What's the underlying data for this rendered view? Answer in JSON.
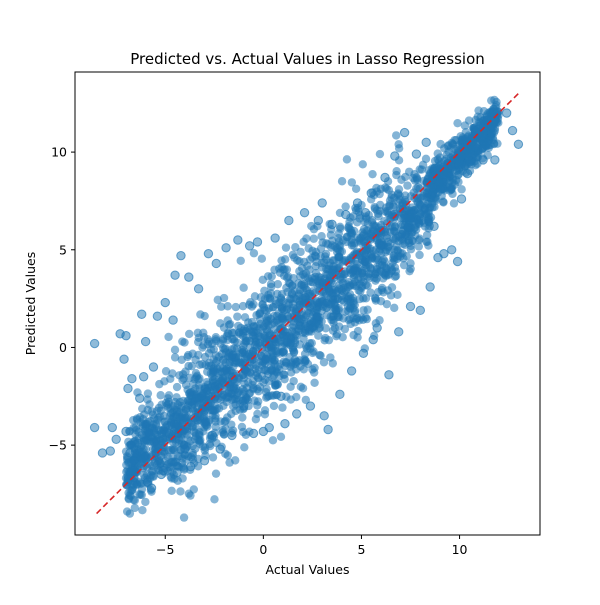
{
  "chart_data": {
    "type": "scatter",
    "title": "Predicted vs. Actual Values in Lasso Regression",
    "xlabel": "Actual Values",
    "ylabel": "Predicted Values",
    "xlim": [
      -9.6,
      14.1
    ],
    "ylim": [
      -9.6,
      14.1
    ],
    "x_ticks": [
      -5,
      0,
      5,
      10
    ],
    "y_ticks": [
      -5,
      0,
      5,
      10
    ],
    "grid": false,
    "legend": "none",
    "series": [
      {
        "marker": "circle",
        "color": "#1f77b4",
        "alpha": 0.5,
        "points": [
          [
            -8.6,
            0.2
          ],
          [
            -8.6,
            -4.1
          ],
          [
            -8.2,
            -5.4
          ],
          [
            -7.8,
            -5.3
          ],
          [
            -7.7,
            -4.1
          ],
          [
            -7.5,
            -4.7
          ],
          [
            -7.3,
            0.7
          ],
          [
            -7.0,
            0.6
          ],
          [
            -7.1,
            -0.6
          ],
          [
            -6.9,
            -2.1
          ],
          [
            -7.0,
            -4.3
          ],
          [
            -6.8,
            -5.4
          ],
          [
            -6.6,
            -5.8
          ],
          [
            -6.4,
            -4.9
          ],
          [
            -6.3,
            -2.6
          ],
          [
            -6.1,
            -1.5
          ],
          [
            -6.0,
            0.3
          ],
          [
            -5.9,
            -6.9
          ],
          [
            -5.7,
            -7.2
          ],
          [
            -5.6,
            -1.0
          ],
          [
            -5.4,
            1.6
          ],
          [
            -5.2,
            -6.5
          ],
          [
            -5.0,
            2.3
          ],
          [
            -4.8,
            -4.4
          ],
          [
            -4.6,
            1.4
          ],
          [
            -4.4,
            -6.4
          ],
          [
            -4.2,
            4.7
          ],
          [
            -4.0,
            -5.2
          ],
          [
            -3.8,
            3.6
          ],
          [
            -3.5,
            -3.6
          ],
          [
            -3.3,
            3.0
          ],
          [
            -3.0,
            -5.8
          ],
          [
            -2.8,
            4.8
          ],
          [
            -2.6,
            -4.5
          ],
          [
            -2.4,
            4.3
          ],
          [
            -2.2,
            -5.2
          ],
          [
            -1.9,
            5.1
          ],
          [
            -1.6,
            -4.5
          ],
          [
            -1.3,
            5.5
          ],
          [
            -1.0,
            -3.0
          ],
          [
            -0.7,
            5.2
          ],
          [
            -0.5,
            -4.4
          ],
          [
            -0.3,
            5.4
          ],
          [
            0.0,
            -4.3
          ],
          [
            0.3,
            -4.1
          ],
          [
            0.6,
            5.6
          ],
          [
            0.9,
            -2.5
          ],
          [
            1.3,
            6.5
          ],
          [
            1.7,
            -3.4
          ],
          [
            2.1,
            6.9
          ],
          [
            2.4,
            -3.0
          ],
          [
            2.8,
            6.5
          ],
          [
            3.1,
            -3.5
          ],
          [
            3.3,
            -4.2
          ],
          [
            3.5,
            6.3
          ],
          [
            3.9,
            -2.4
          ],
          [
            4.2,
            6.8
          ],
          [
            4.5,
            -1.2
          ],
          [
            4.8,
            7.4
          ],
          [
            5.1,
            -0.3
          ],
          [
            5.5,
            7.9
          ],
          [
            5.6,
            0.4
          ],
          [
            5.8,
            1.0
          ],
          [
            6.2,
            8.7
          ],
          [
            6.4,
            -1.4
          ],
          [
            6.7,
            9.8
          ],
          [
            6.9,
            0.8
          ],
          [
            7.2,
            11.0
          ],
          [
            7.5,
            2.1
          ],
          [
            7.8,
            9.9
          ],
          [
            8.0,
            1.9
          ],
          [
            8.3,
            10.5
          ],
          [
            8.5,
            3.1
          ],
          [
            8.9,
            4.6
          ],
          [
            9.2,
            4.8
          ],
          [
            9.6,
            5.0
          ],
          [
            10.1,
            7.6
          ],
          [
            10.4,
            8.9
          ],
          [
            10.8,
            10.8
          ],
          [
            11.2,
            9.6
          ],
          [
            11.4,
            11.6
          ],
          [
            11.8,
            9.6
          ],
          [
            12.4,
            12.0
          ],
          [
            12.7,
            11.1
          ],
          [
            13.0,
            10.4
          ],
          [
            -4.5,
            3.7
          ],
          [
            -6.7,
            -1.6
          ],
          [
            -6.2,
            1.7
          ],
          [
            9.9,
            4.4
          ],
          [
            8.7,
            6.2
          ],
          [
            3.0,
            7.4
          ],
          [
            5.2,
            6.9
          ],
          [
            -3.7,
            -6.1
          ],
          [
            -5.1,
            -6.3
          ],
          [
            1.1,
            -3.9
          ]
        ]
      }
    ],
    "reference_line": {
      "label": "",
      "color": "#d62728",
      "style": "dashed",
      "x": [
        -8.5,
        13.0
      ],
      "y": [
        -8.5,
        13.0
      ]
    }
  }
}
